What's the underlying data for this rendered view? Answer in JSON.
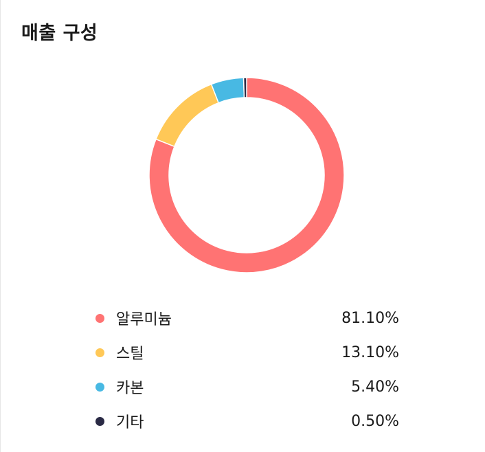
{
  "title": "매출 구성",
  "chart_data": {
    "type": "pie",
    "variant": "donut",
    "legend_position": "bottom",
    "categories": [
      "알루미늄",
      "스틸",
      "카본",
      "기타"
    ],
    "values": [
      81.1,
      13.1,
      5.4,
      0.5
    ],
    "value_labels": [
      "81.10%",
      "13.10%",
      "5.40%",
      "0.50%"
    ],
    "colors": [
      "#ff7373",
      "#ffc857",
      "#48b9e3",
      "#2a2a45"
    ],
    "unit": "%"
  }
}
